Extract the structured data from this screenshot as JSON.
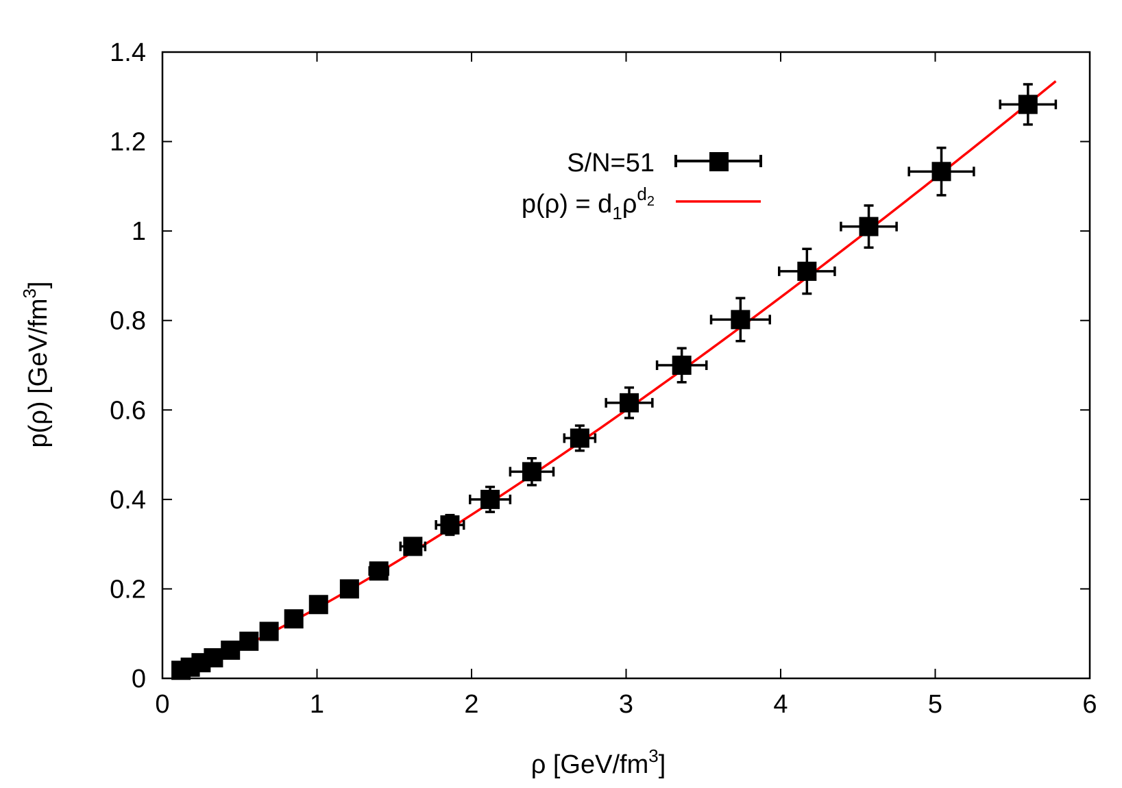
{
  "chart_data": {
    "type": "scatter",
    "xlabel": "ρ [GeV/fm",
    "xlabel_sup": "3",
    "xlabel_close": "]",
    "ylabel": "p(ρ) [GeV/fm",
    "ylabel_sup": "3",
    "ylabel_close": "]",
    "xlim": [
      0,
      6
    ],
    "ylim": [
      0,
      1.4
    ],
    "x_ticks": [
      0,
      1,
      2,
      3,
      4,
      5,
      6
    ],
    "x_tick_labels": [
      "0",
      "1",
      "2",
      "3",
      "4",
      "5",
      "6"
    ],
    "y_ticks": [
      0,
      0.2,
      0.4,
      0.6,
      0.8,
      1.0,
      1.2,
      1.4
    ],
    "y_tick_labels": [
      "0",
      "0.2",
      "0.4",
      "0.6",
      "0.8",
      "1",
      "1.2",
      "1.4"
    ],
    "grid": false,
    "legend_position": "top-center",
    "series": [
      {
        "name": "S/N=51",
        "kind": "points-with-xy-errorbars",
        "color": "#000000",
        "points": [
          {
            "x": 0.12,
            "y": 0.018,
            "xerr": 0.01,
            "yerr": 0.003
          },
          {
            "x": 0.18,
            "y": 0.025,
            "xerr": 0.012,
            "yerr": 0.003
          },
          {
            "x": 0.25,
            "y": 0.035,
            "xerr": 0.015,
            "yerr": 0.004
          },
          {
            "x": 0.33,
            "y": 0.046,
            "xerr": 0.018,
            "yerr": 0.004
          },
          {
            "x": 0.44,
            "y": 0.063,
            "xerr": 0.022,
            "yerr": 0.005
          },
          {
            "x": 0.56,
            "y": 0.083,
            "xerr": 0.025,
            "yerr": 0.006
          },
          {
            "x": 0.69,
            "y": 0.105,
            "xerr": 0.03,
            "yerr": 0.007
          },
          {
            "x": 0.85,
            "y": 0.133,
            "xerr": 0.035,
            "yerr": 0.008
          },
          {
            "x": 1.01,
            "y": 0.165,
            "xerr": 0.04,
            "yerr": 0.01
          },
          {
            "x": 1.21,
            "y": 0.2,
            "xerr": 0.05,
            "yerr": 0.012
          },
          {
            "x": 1.4,
            "y": 0.24,
            "xerr": 0.06,
            "yerr": 0.015
          },
          {
            "x": 1.62,
            "y": 0.295,
            "xerr": 0.08,
            "yerr": 0.018
          },
          {
            "x": 1.86,
            "y": 0.343,
            "xerr": 0.09,
            "yerr": 0.022
          },
          {
            "x": 2.12,
            "y": 0.4,
            "xerr": 0.13,
            "yerr": 0.028
          },
          {
            "x": 2.39,
            "y": 0.462,
            "xerr": 0.14,
            "yerr": 0.03
          },
          {
            "x": 2.7,
            "y": 0.537,
            "xerr": 0.1,
            "yerr": 0.028
          },
          {
            "x": 3.02,
            "y": 0.616,
            "xerr": 0.15,
            "yerr": 0.034
          },
          {
            "x": 3.36,
            "y": 0.7,
            "xerr": 0.16,
            "yerr": 0.038
          },
          {
            "x": 3.74,
            "y": 0.802,
            "xerr": 0.19,
            "yerr": 0.048
          },
          {
            "x": 4.17,
            "y": 0.91,
            "xerr": 0.18,
            "yerr": 0.05
          },
          {
            "x": 4.57,
            "y": 1.01,
            "xerr": 0.18,
            "yerr": 0.047
          },
          {
            "x": 5.04,
            "y": 1.133,
            "xerr": 0.21,
            "yerr": 0.053
          },
          {
            "x": 5.6,
            "y": 1.283,
            "xerr": 0.18,
            "yerr": 0.045
          }
        ]
      },
      {
        "name": "p(ρ) = d",
        "name_parts": {
          "main": "p(ρ) = d",
          "sub1": "1",
          "mid": "ρ",
          "sup": "d",
          "supsub": "2"
        },
        "kind": "fit-curve",
        "color": "#ff0000",
        "formula": "p(ρ) = d1 ρ^d2",
        "params": {
          "d1": 0.157,
          "d2": 1.22
        },
        "x_range": [
          0.1,
          5.78
        ]
      }
    ]
  }
}
